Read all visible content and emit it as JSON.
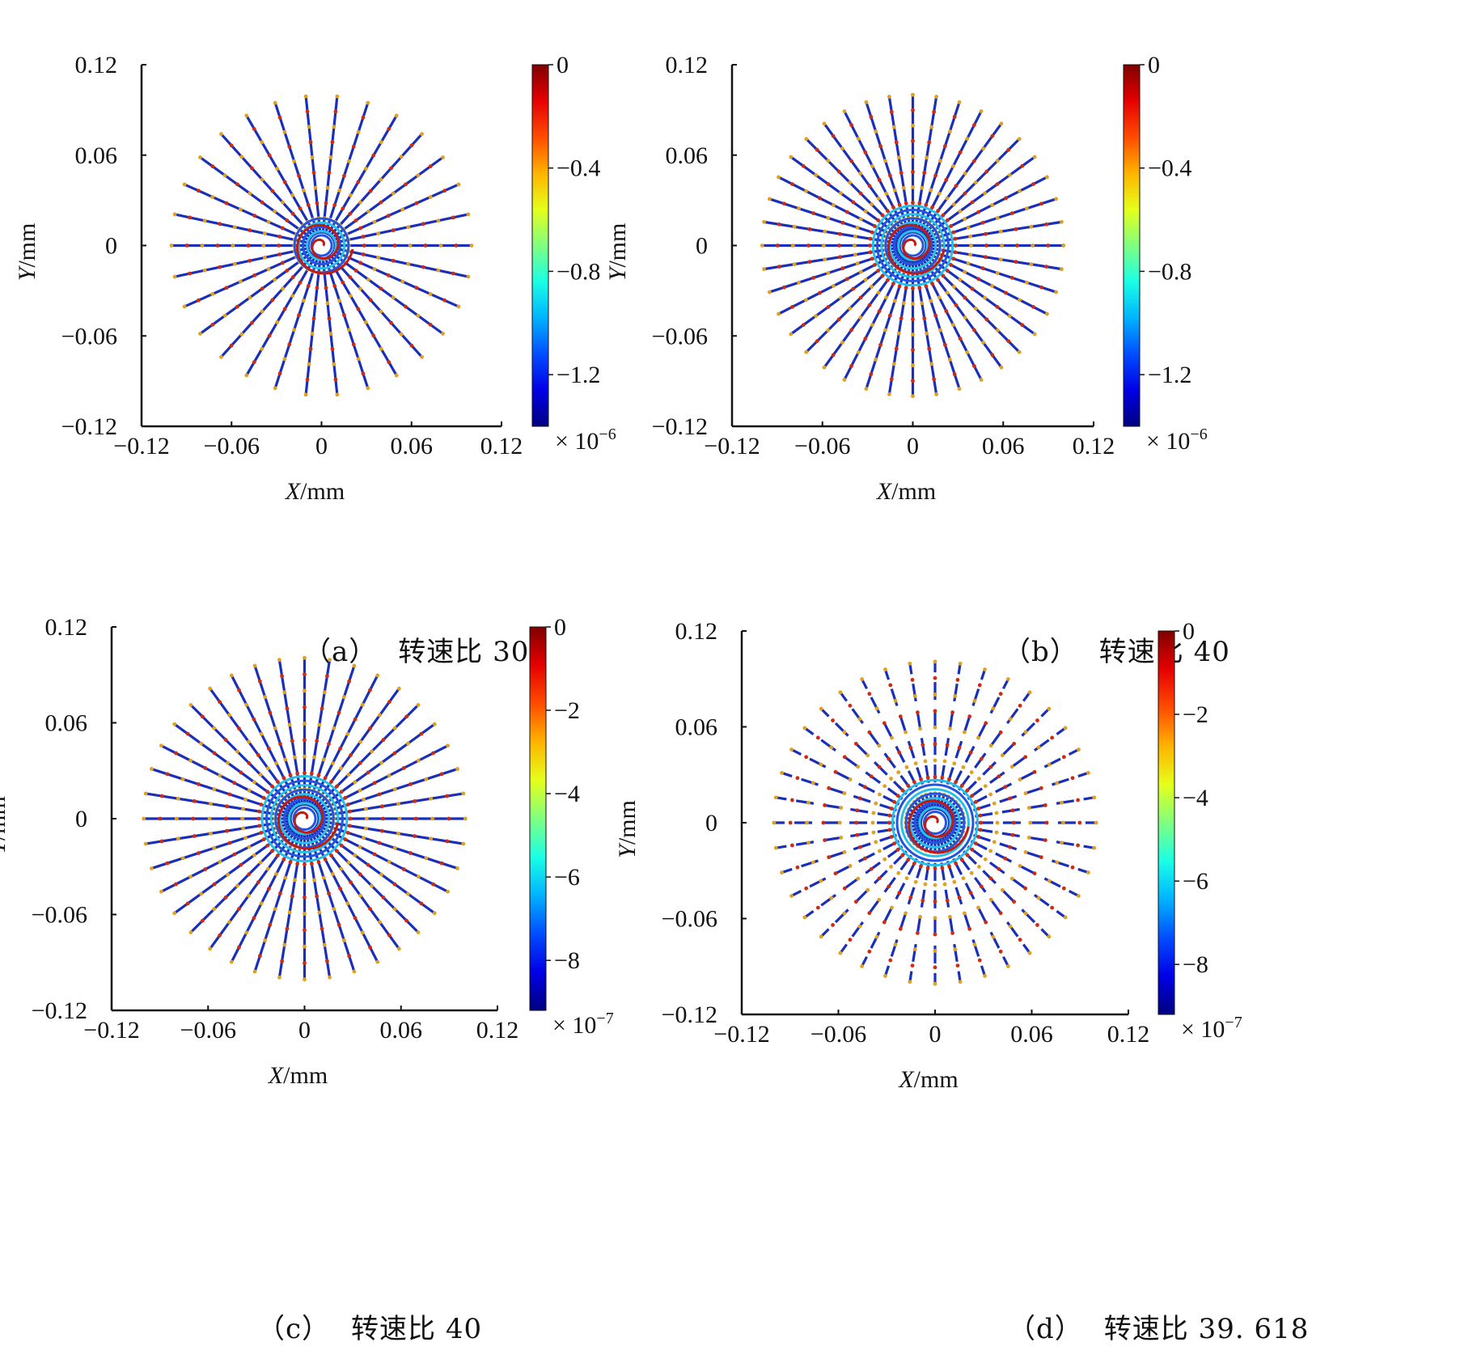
{
  "chart_data": [
    {
      "panel": "a",
      "type": "scatter",
      "caption_label": "（a）",
      "caption_text": "转速比 30",
      "xlabel": "X",
      "xunit": "/mm",
      "ylabel": "Y",
      "yunit": "/mm",
      "xlim": [
        -0.12,
        0.12
      ],
      "ylim": [
        -0.12,
        0.12
      ],
      "xticks": [
        "-0.12",
        "-0.06",
        "0",
        "0.06",
        "0.12"
      ],
      "yticks": [
        "-0.12",
        "-0.06",
        "0",
        "0.06",
        "0.12"
      ],
      "spokes": 30,
      "colorbar": {
        "ticks": [
          "0",
          "-0.4",
          "-0.8",
          "-1.2"
        ],
        "range": [
          -1.4,
          0
        ],
        "exponent_base": "× 10",
        "exponent": "-6"
      }
    },
    {
      "panel": "b",
      "type": "scatter",
      "caption_label": "（b）",
      "caption_text": "转速比 40",
      "xlabel": "X",
      "xunit": "/mm",
      "ylabel": "Y",
      "yunit": "/mm",
      "xlim": [
        -0.12,
        0.12
      ],
      "ylim": [
        -0.12,
        0.12
      ],
      "xticks": [
        "-0.12",
        "-0.06",
        "0",
        "0.06",
        "0.12"
      ],
      "yticks": [
        "-0.12",
        "-0.06",
        "0",
        "0.06",
        "0.12"
      ],
      "spokes": 40,
      "colorbar": {
        "ticks": [
          "0",
          "-0.4",
          "-0.8",
          "-1.2"
        ],
        "range": [
          -1.4,
          0
        ],
        "exponent_base": "× 10",
        "exponent": "-6"
      }
    },
    {
      "panel": "c",
      "type": "scatter",
      "caption_label": "（c）",
      "caption_text": "转速比 40",
      "xlabel": "X",
      "xunit": "/mm",
      "ylabel": "Y",
      "yunit": "/mm",
      "xlim": [
        -0.12,
        0.12
      ],
      "ylim": [
        -0.12,
        0.12
      ],
      "xticks": [
        "-0.12",
        "-0.06",
        "0",
        "0.06",
        "0.12"
      ],
      "yticks": [
        "-0.12",
        "-0.06",
        "0",
        "0.06",
        "0.12"
      ],
      "spokes": 40,
      "colorbar": {
        "ticks": [
          "0",
          "-2",
          "-4",
          "-6",
          "-8"
        ],
        "range": [
          -9.2,
          0
        ],
        "exponent_base": "× 10",
        "exponent": "-7"
      }
    },
    {
      "panel": "d",
      "type": "scatter",
      "caption_label": "（d）",
      "caption_text": "转速比 39. 618",
      "xlabel": "X",
      "xunit": "/mm",
      "ylabel": "Y",
      "yunit": "/mm",
      "xlim": [
        -0.12,
        0.12
      ],
      "ylim": [
        -0.12,
        0.12
      ],
      "xticks": [
        "-0.12",
        "-0.06",
        "0",
        "0.06",
        "0.12"
      ],
      "yticks": [
        "-0.12",
        "-0.06",
        "0",
        "0.06",
        "0.12"
      ],
      "spokes": 40,
      "colorbar": {
        "ticks": [
          "0",
          "-2",
          "-4",
          "-6",
          "-8"
        ],
        "range": [
          -9.2,
          0
        ],
        "exponent_base": "× 10",
        "exponent": "-7"
      }
    }
  ],
  "colors": {
    "colormap": "jet",
    "axis": "#111111",
    "background": "#ffffff"
  }
}
